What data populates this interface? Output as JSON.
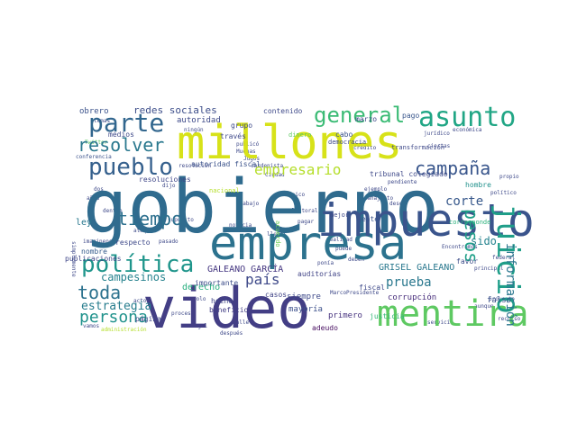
{
  "words": [
    {
      "text": "gobierno",
      "color": "#2f6b8e"
    },
    {
      "text": "video",
      "color": "#433e85"
    },
    {
      "text": "millones",
      "color": "#d7e219"
    },
    {
      "text": "empresa",
      "color": "#2c728e"
    },
    {
      "text": "impuesto",
      "color": "#3a548c"
    },
    {
      "text": "mentira",
      "color": "#5ec962"
    },
    {
      "text": "asunto",
      "color": "#21a685"
    },
    {
      "text": "parte",
      "color": "#31668e"
    },
    {
      "text": "pueblo",
      "color": "#35608d"
    },
    {
      "text": "política",
      "color": "#1f958b"
    },
    {
      "text": "juicio",
      "color": "#1f9e89"
    },
    {
      "text": "general",
      "color": "#3bbb75"
    },
    {
      "text": "resolver",
      "color": "#2a788e"
    },
    {
      "text": "tiempo",
      "color": "#2d708e"
    },
    {
      "text": "campaña",
      "color": "#39568c"
    },
    {
      "text": "empresario",
      "color": "#b5de2b"
    },
    {
      "text": "pesos",
      "color": "#1fa088"
    },
    {
      "text": "toda",
      "color": "#2c728e"
    },
    {
      "text": "persona",
      "color": "#20928c"
    },
    {
      "text": "estrategia",
      "color": "#287d8e"
    },
    {
      "text": "país",
      "color": "#3e4989"
    },
    {
      "text": "corte",
      "color": "#38598c"
    },
    {
      "text": "prueba",
      "color": "#2a788e"
    },
    {
      "text": "campesinos",
      "color": "#26828e"
    },
    {
      "text": "información",
      "color": "#2a768e"
    },
    {
      "text": "sido",
      "color": "#25838e"
    },
    {
      "text": "redes sociales",
      "color": "#3d4e8a"
    },
    {
      "text": "GALEANO GARCÍA",
      "color": "#453781"
    },
    {
      "text": "GRISEL GALEANO",
      "color": "#2a788e"
    },
    {
      "text": "derecho",
      "color": "#29af7f"
    },
    {
      "text": "autoridad",
      "color": "#3e4a89"
    },
    {
      "text": "autoridad fiscal",
      "color": "#3b528b"
    },
    {
      "text": "resoluciones",
      "color": "#3f4788"
    },
    {
      "text": "hombre",
      "color": "#21918c"
    },
    {
      "text": "corresponde",
      "color": "#2db27d"
    },
    {
      "text": "siempre",
      "color": "#3e4989"
    },
    {
      "text": "hecho",
      "color": "#404688"
    },
    {
      "text": "mayoría",
      "color": "#3c508b"
    },
    {
      "text": "primero",
      "color": "#46327e"
    },
    {
      "text": "corrupción",
      "color": "#472d7b"
    },
    {
      "text": "falso",
      "color": "#3b528b"
    },
    {
      "text": "adeudo",
      "color": "#470d60"
    },
    {
      "text": "justicia",
      "color": "#35b779"
    },
    {
      "text": "importante",
      "color": "#3d4d8a"
    },
    {
      "text": "beneficio",
      "color": "#433e85"
    },
    {
      "text": "grupo",
      "color": "#3e4989"
    },
    {
      "text": "pago",
      "color": "#39568c"
    },
    {
      "text": "marzo",
      "color": "#3e4989"
    },
    {
      "text": "obrero",
      "color": "#3b528b"
    },
    {
      "text": "medios",
      "color": "#3e4989"
    },
    {
      "text": "ley",
      "color": "#2a788e"
    },
    {
      "text": "nombre",
      "color": "#365c8d"
    },
    {
      "text": "publicaciones",
      "color": "#3f4788"
    },
    {
      "text": "página",
      "color": "#404688"
    },
    {
      "text": "respecto",
      "color": "#3e4989"
    },
    {
      "text": "gente",
      "color": "#3a548c"
    },
    {
      "text": "favor",
      "color": "#3d4d8a"
    },
    {
      "text": "auditorías",
      "color": "#414487"
    },
    {
      "text": "fiscal",
      "color": "#3e4989"
    },
    {
      "text": "cabo",
      "color": "#3b528b"
    },
    {
      "text": "dinero",
      "color": "#5ec962"
    },
    {
      "text": "través",
      "color": "#3e4989"
    },
    {
      "text": "casos",
      "color": "#414487"
    },
    {
      "text": "tribunal colegiado",
      "color": "#3e4989"
    },
    {
      "text": "contenido",
      "color": "#3e4989"
    },
    {
      "text": "resolución",
      "color": "#3e4989"
    },
    {
      "text": "acuerdo",
      "color": "#6ece58"
    },
    {
      "text": "mejor",
      "color": "#3e4989"
    },
    {
      "text": "democracia",
      "color": "#3e4989"
    },
    {
      "text": "transformación",
      "color": "#3e4989"
    },
    {
      "text": "nacional",
      "color": "#b5de2b"
    }
  ]
}
